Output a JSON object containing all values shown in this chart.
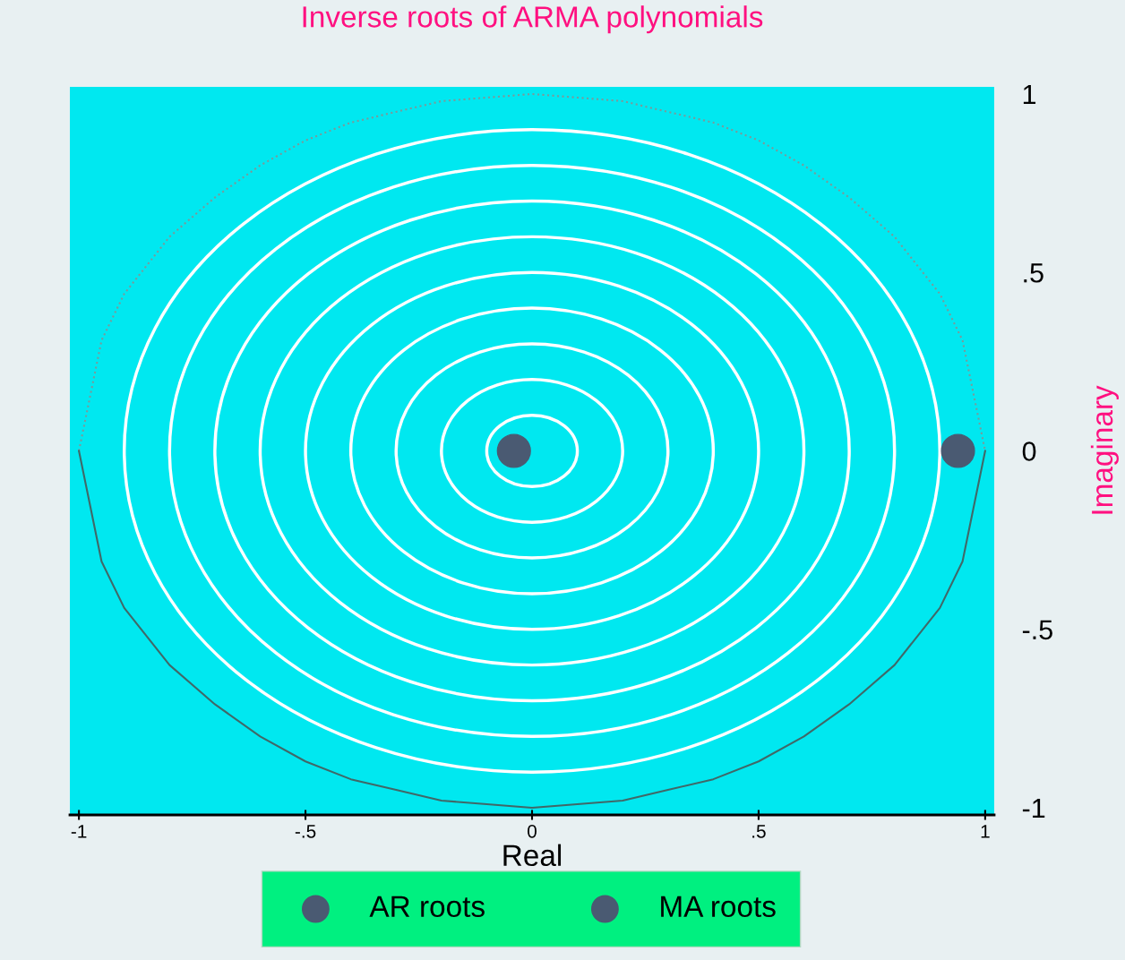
{
  "chart_data": {
    "type": "scatter",
    "title": "Inverse roots of ARMA polynomials",
    "xlabel": "Real",
    "ylabel": "Imaginary",
    "xlim": [
      -1.02,
      1.02
    ],
    "ylim": [
      -1.02,
      1.02
    ],
    "xticks": [
      {
        "value": -1,
        "label": "-1"
      },
      {
        "value": -0.5,
        "label": "-.5"
      },
      0,
      {
        "value": 0.5,
        "label": ".5"
      },
      1
    ],
    "yticks": [
      {
        "value": -1,
        "label": "-1"
      },
      {
        "value": -0.5,
        "label": "-.5"
      },
      0,
      {
        "value": 0.5,
        "label": ".5"
      },
      1
    ],
    "grid": false,
    "legend": "bottom",
    "marker": "circle",
    "series": [
      {
        "type": "line",
        "color": "#7a9a9a",
        "line_style": "dotted",
        "marker": "none",
        "x": [
          -1,
          -0.95,
          -0.9,
          -0.8,
          -0.7,
          -0.6,
          -0.5,
          -0.4,
          -0.3,
          -0.2,
          -0.1,
          0,
          0.1,
          0.2,
          0.3,
          0.4,
          0.5,
          0.6,
          0.7,
          0.8,
          0.9,
          0.95,
          1
        ],
        "values": [
          0,
          0.31,
          0.44,
          0.6,
          0.71,
          0.8,
          0.87,
          0.92,
          0.95,
          0.98,
          0.99,
          1,
          0.99,
          0.98,
          0.95,
          0.92,
          0.87,
          0.8,
          0.71,
          0.6,
          0.44,
          0.31,
          0
        ]
      },
      {
        "type": "line",
        "color": "#406868",
        "line_style": "solid",
        "marker": "none",
        "x": [
          -1,
          -0.95,
          -0.9,
          -0.8,
          -0.7,
          -0.6,
          -0.5,
          -0.4,
          -0.3,
          -0.2,
          -0.1,
          0,
          0.1,
          0.2,
          0.3,
          0.4,
          0.5,
          0.6,
          0.7,
          0.8,
          0.9,
          0.95,
          1
        ],
        "values": [
          0,
          -0.31,
          -0.44,
          -0.6,
          -0.71,
          -0.8,
          -0.87,
          -0.92,
          -0.95,
          -0.98,
          -0.99,
          -1,
          -0.99,
          -0.98,
          -0.95,
          -0.92,
          -0.87,
          -0.8,
          -0.71,
          -0.6,
          -0.44,
          -0.31,
          0
        ]
      },
      {
        "name": "AR roots",
        "color": "#4a5a72",
        "x": [
          -0.04
        ],
        "values": [
          0
        ]
      },
      {
        "name": "MA roots",
        "color": "#4a5a72",
        "x": [
          0.94
        ],
        "values": [
          0
        ]
      }
    ]
  }
}
